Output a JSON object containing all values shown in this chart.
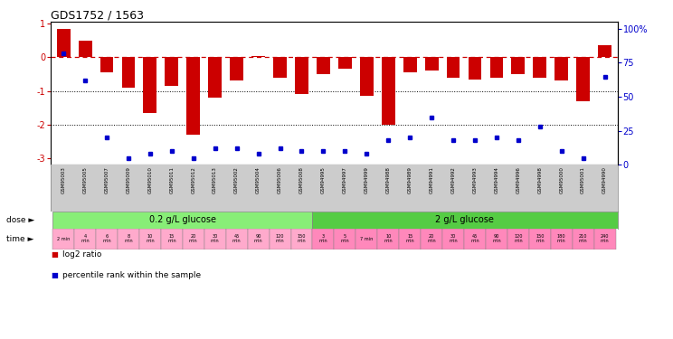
{
  "title": "GDS1752 / 1563",
  "samples": [
    "GSM95003",
    "GSM95005",
    "GSM95007",
    "GSM95009",
    "GSM95010",
    "GSM95011",
    "GSM95012",
    "GSM95013",
    "GSM95002",
    "GSM95004",
    "GSM95006",
    "GSM95008",
    "GSM94995",
    "GSM94997",
    "GSM94999",
    "GSM94988",
    "GSM94989",
    "GSM94991",
    "GSM94992",
    "GSM94993",
    "GSM94994",
    "GSM94996",
    "GSM94998",
    "GSM95000",
    "GSM95001",
    "GSM94990"
  ],
  "log2_ratio": [
    0.85,
    0.5,
    -0.45,
    -0.9,
    -1.65,
    -0.85,
    -2.3,
    -1.2,
    -0.7,
    0.05,
    -0.6,
    -1.1,
    -0.5,
    -0.35,
    -1.15,
    -2.0,
    -0.45,
    -0.4,
    -0.6,
    -0.65,
    -0.6,
    -0.5,
    -0.6,
    -0.7,
    -1.3,
    0.35
  ],
  "percentile": [
    82,
    62,
    20,
    5,
    8,
    10,
    5,
    12,
    12,
    8,
    12,
    10,
    10,
    10,
    8,
    18,
    20,
    35,
    18,
    18,
    20,
    18,
    28,
    10,
    5,
    65
  ],
  "n_low": 12,
  "n_high": 14,
  "bar_color": "#cc0000",
  "dot_color": "#0000cc",
  "bg_color_low": "#88ee77",
  "bg_color_high": "#55cc44",
  "time_bg_low": "#ffaacc",
  "time_bg_high": "#ff88bb",
  "sample_bg": "#cccccc",
  "ylim_left": [
    -3.2,
    1.05
  ],
  "ylim_right": [
    0,
    105
  ],
  "yticks_left": [
    -3,
    -2,
    -1,
    0,
    1
  ],
  "yticks_right": [
    0,
    25,
    50,
    75,
    100
  ],
  "yticklabels_right": [
    "0",
    "25",
    "50",
    "75",
    "100%"
  ],
  "dose_low": "0.2 g/L glucose",
  "dose_high": "2 g/L glucose",
  "time_labels": [
    "2 min",
    "4\nmin",
    "6\nmin",
    "8\nmin",
    "10\nmin",
    "15\nmin",
    "20\nmin",
    "30\nmin",
    "45\nmin",
    "90\nmin",
    "120\nmin",
    "150\nmin",
    "3\nmin",
    "5\nmin",
    "7 min",
    "10\nmin",
    "15\nmin",
    "20\nmin",
    "30\nmin",
    "45\nmin",
    "90\nmin",
    "120\nmin",
    "150\nmin",
    "180\nmin",
    "210\nmin",
    "240\nmin"
  ]
}
